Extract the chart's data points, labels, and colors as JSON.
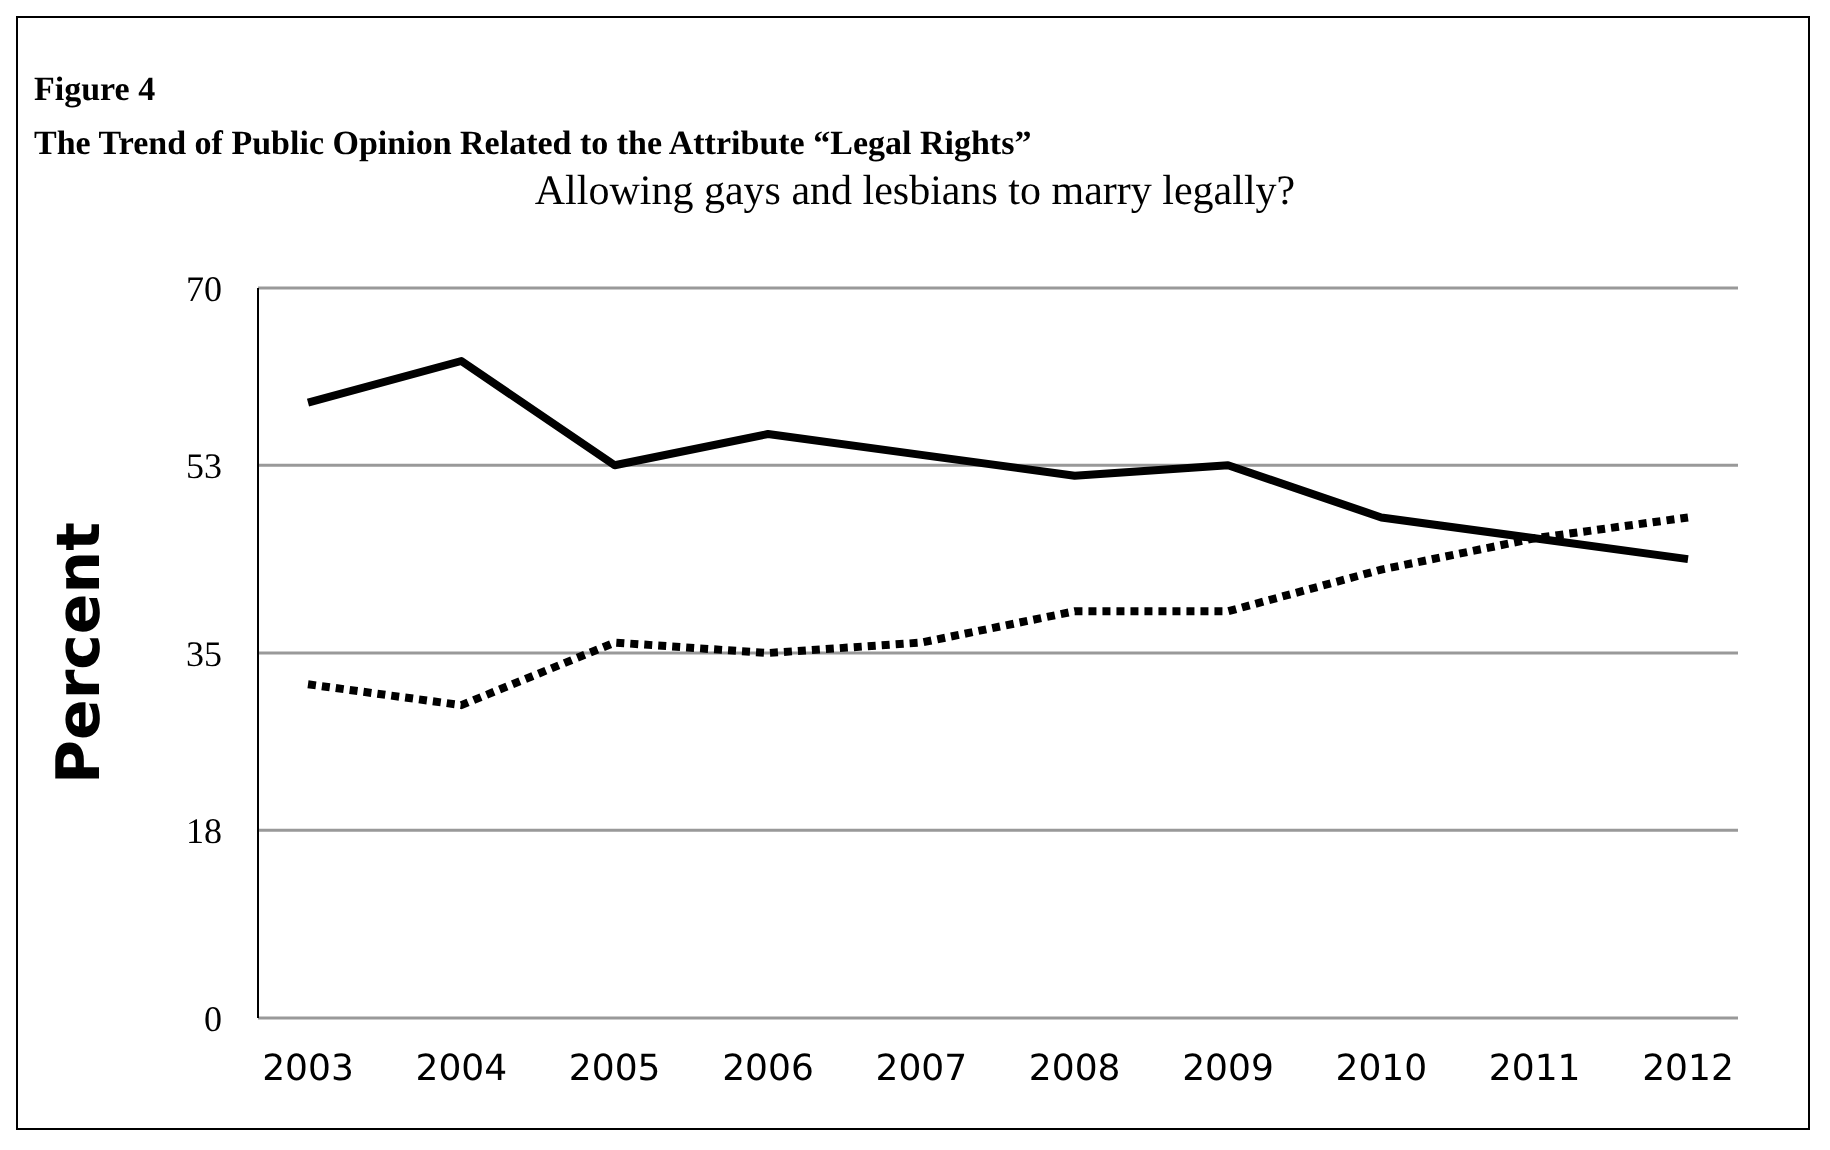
{
  "chart_data": {
    "type": "line",
    "title": "Allowing gays and lesbians to marry legally?",
    "annotations": [
      "Figure 4",
      "The Trend of Public Opinion Related to the Attribute “Legal Rights”"
    ],
    "ylabel": "Percent",
    "categories": [
      "2003",
      "2004",
      "2005",
      "2006",
      "2007",
      "2008",
      "2009",
      "2010",
      "2011",
      "2012"
    ],
    "series": [
      {
        "color": "#000000",
        "line_style": "solid",
        "values": [
          59,
          63,
          53,
          56,
          54,
          52,
          53,
          48,
          46,
          44
        ]
      },
      {
        "color": "#000000",
        "line_style": "dotted",
        "values": [
          32,
          30,
          36,
          35,
          36,
          39,
          39,
          43,
          46,
          48
        ]
      }
    ],
    "ylim": [
      0,
      70
    ],
    "yticks": [
      0,
      18,
      35,
      53,
      70
    ],
    "grid": "y",
    "legend": false,
    "marker": "none"
  }
}
